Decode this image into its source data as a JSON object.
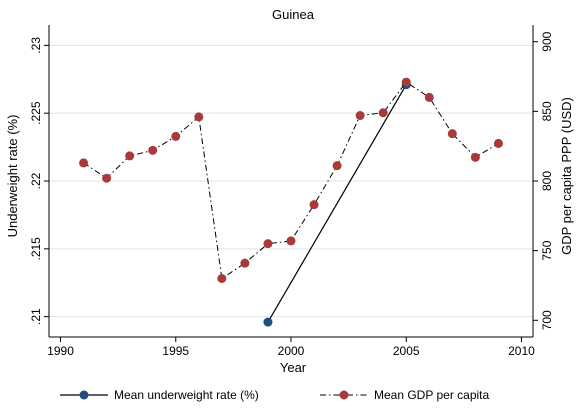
{
  "chart_data": {
    "type": "line",
    "title": "Guinea",
    "xlabel": "Year",
    "ylabel_left": "Underweight rate (%)",
    "ylabel_right": "GDP per capita PPP (USD)",
    "xlim": [
      1989.5,
      2010.5
    ],
    "ylim_left": [
      0.2085,
      0.2315
    ],
    "ylim_right": [
      688,
      912
    ],
    "x_ticks": [
      1990,
      1995,
      2000,
      2005,
      2010
    ],
    "x_tick_labels": [
      "1990",
      "1995",
      "2000",
      "2005",
      "2010"
    ],
    "y_left_ticks": [
      0.21,
      0.215,
      0.22,
      0.225,
      0.23
    ],
    "y_left_tick_labels": [
      ".21",
      ".215",
      ".22",
      ".225",
      ".23"
    ],
    "y_right_ticks": [
      700,
      750,
      800,
      850,
      900
    ],
    "y_right_tick_labels": [
      "700",
      "750",
      "800",
      "850",
      "900"
    ],
    "grid": true,
    "legend_position": "bottom",
    "series": [
      {
        "name": "Mean underweight rate (%)",
        "axis": "left",
        "line_style": "solid",
        "color": "#1f4e79",
        "x": [
          1999,
          2005
        ],
        "values": [
          0.2096,
          0.2271
        ]
      },
      {
        "name": "Mean GDP per capita",
        "axis": "right",
        "line_style": "dashdot",
        "color": "#a83a3a",
        "x": [
          1991,
          1992,
          1993,
          1994,
          1995,
          1996,
          1997,
          1998,
          1999,
          2000,
          2001,
          2002,
          2003,
          2004,
          2005,
          2006,
          2007,
          2008,
          2009
        ],
        "values": [
          813,
          802,
          818,
          822,
          832,
          846,
          730,
          741,
          755,
          757,
          783,
          811,
          847,
          849,
          871,
          860,
          834,
          817,
          827
        ]
      }
    ]
  }
}
